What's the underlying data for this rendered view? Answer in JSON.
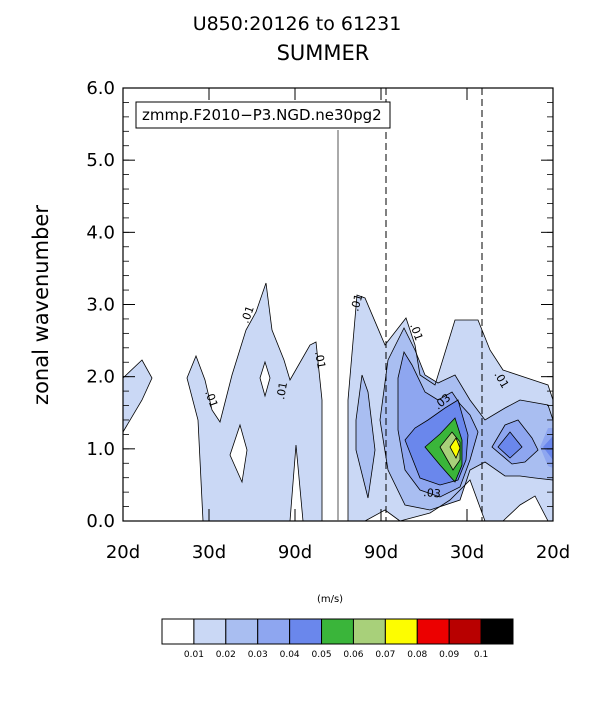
{
  "chart_data": {
    "type": "contour",
    "title": "U850:20126 to 61231",
    "subtitle": "SUMMER",
    "ylabel": "zonal wavenumber",
    "ylim": [
      0,
      6
    ],
    "yticks": [
      "0.0",
      "1.0",
      "2.0",
      "3.0",
      "4.0",
      "5.0",
      "6.0"
    ],
    "xticks": [
      "20d",
      "30d",
      "90d",
      "90d",
      "30d",
      "20d"
    ],
    "legend": "zmmp.F2010−P3.NGD.ne30pg2",
    "units_label": "(m/s)",
    "levels": [
      "0.01",
      "0.02",
      "0.03",
      "0.04",
      "0.05",
      "0.06",
      "0.07",
      "0.08",
      "0.09",
      "0.1"
    ],
    "level_colors": [
      "#ffffff",
      "#cad8f5",
      "#a9bef1",
      "#8ea6f0",
      "#6a87ec",
      "#3ab53a",
      "#a8d07a",
      "#fdfd00",
      "#ec0000",
      "#b80000",
      "#000000"
    ],
    "contour_labels": [
      {
        "text": ".01",
        "region": "westward, near 90d"
      },
      {
        "text": ".01",
        "region": "westward, near 30d"
      },
      {
        "text": ".01",
        "region": "westward, between 30d and 90d"
      },
      {
        "text": ".01",
        "region": "westward, near 90d (lower)"
      },
      {
        "text": ".01",
        "region": "eastward, near zero frequency"
      },
      {
        "text": ".01",
        "region": "eastward, near 90d"
      },
      {
        "text": ".01",
        "region": "eastward, near 30d"
      },
      {
        "text": ".03",
        "region": "eastward peak, upper"
      },
      {
        "text": ".03",
        "region": "eastward peak, lower"
      }
    ]
  }
}
